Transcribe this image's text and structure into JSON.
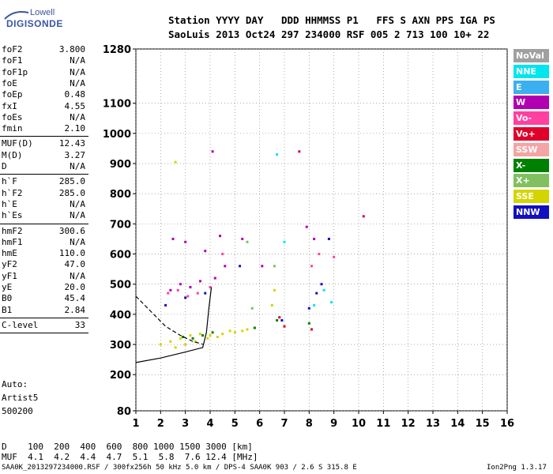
{
  "logo": {
    "line1": "Lowell",
    "line2": "DIGISONDE"
  },
  "header": {
    "row1": "Station YYYY DAY   DDD HHMMSS P1   FFS S AXN PPS IGA PS",
    "row2": "SaoLuis 2013 Oct24 297 234000 RSF 005 2 713 100 10+ 22"
  },
  "params_group1": [
    {
      "name": "foF2",
      "value": "3.800"
    },
    {
      "name": "foF1",
      "value": "N/A"
    },
    {
      "name": "foF1p",
      "value": "N/A"
    },
    {
      "name": "foE",
      "value": "N/A"
    },
    {
      "name": "foEp",
      "value": "0.48"
    },
    {
      "name": "fxI",
      "value": "4.55"
    },
    {
      "name": "foEs",
      "value": "N/A"
    },
    {
      "name": "fmin",
      "value": "2.10"
    }
  ],
  "params_group2": [
    {
      "name": "MUF(D)",
      "value": "12.43"
    },
    {
      "name": "M(D)",
      "value": "3.27"
    },
    {
      "name": "D",
      "value": "N/A"
    }
  ],
  "params_group3": [
    {
      "name": "h`F",
      "value": "285.0"
    },
    {
      "name": "h`F2",
      "value": "285.0"
    },
    {
      "name": "h`E",
      "value": "N/A"
    },
    {
      "name": "h`Es",
      "value": "N/A"
    }
  ],
  "params_group4": [
    {
      "name": "hmF2",
      "value": "300.6"
    },
    {
      "name": "hmF1",
      "value": "N/A"
    },
    {
      "name": "hmE",
      "value": "110.0"
    },
    {
      "name": "yF2",
      "value": "47.0"
    },
    {
      "name": "yF1",
      "value": "N/A"
    },
    {
      "name": "yE",
      "value": "20.0"
    },
    {
      "name": "B0",
      "value": "45.4"
    },
    {
      "name": "B1",
      "value": "2.84"
    }
  ],
  "params_group5": [
    {
      "name": "C-level",
      "value": "33"
    }
  ],
  "autoscaling": {
    "line1": "Auto:",
    "line2": "Artist5",
    "line3": "500200"
  },
  "legend": [
    {
      "label": "NoVal",
      "color": "#a0a0a0"
    },
    {
      "label": "NNE",
      "color": "#00e5ee"
    },
    {
      "label": "E",
      "color": "#3bb0f0"
    },
    {
      "label": "W",
      "color": "#b000b0"
    },
    {
      "label": "Vo-",
      "color": "#ff40a0"
    },
    {
      "label": "Vo+",
      "color": "#e0002a"
    },
    {
      "label": "SSW",
      "color": "#f4a4a4"
    },
    {
      "label": "X-",
      "color": "#008000"
    },
    {
      "label": "X+",
      "color": "#80c060"
    },
    {
      "label": "SSE",
      "color": "#d4d400"
    },
    {
      "label": "NNW",
      "color": "#1010c0"
    }
  ],
  "muf_table": {
    "d_row": "D    100  200  400  600  800 1000 1500 3000 [km]",
    "muf_row": "MUF  4.1  4.2  4.4  4.7  5.1  5.8  7.6 12.4 [MHz]"
  },
  "footer": {
    "left": "SAA0K_2013297234000.RSF / 300fx256h 50 kHz 5.0 km / DPS-4 SAA0K 903 / 2.6 S 315.8 E",
    "right": "Ion2Png 1.3.17"
  },
  "chart_data": {
    "type": "scatter",
    "title": "",
    "xlabel": "",
    "ylabel": "",
    "x_axis": {
      "range": [
        1,
        16
      ],
      "ticks": [
        1,
        2,
        3,
        4,
        5,
        6,
        7,
        8,
        9,
        10,
        11,
        12,
        13,
        14,
        15,
        16
      ]
    },
    "y_axis": {
      "range": [
        80,
        1280
      ],
      "ticks": [
        80,
        200,
        300,
        400,
        500,
        600,
        700,
        800,
        900,
        1000,
        1100,
        1280
      ]
    },
    "grid": true,
    "legend_position": "right",
    "series": [
      {
        "mode": "SSE",
        "points": [
          [
            2.0,
            300
          ],
          [
            2.4,
            310
          ],
          [
            2.8,
            320
          ],
          [
            3.2,
            330
          ],
          [
            3.6,
            335
          ],
          [
            4.0,
            330
          ],
          [
            4.5,
            335
          ],
          [
            5.0,
            340
          ],
          [
            5.5,
            350
          ],
          [
            2.6,
            290
          ],
          [
            3.0,
            300
          ],
          [
            3.4,
            310
          ],
          [
            3.9,
            320
          ],
          [
            4.3,
            325
          ],
          [
            4.8,
            345
          ],
          [
            5.3,
            345
          ],
          [
            6.5,
            430
          ],
          [
            6.6,
            480
          ],
          [
            2.6,
            905
          ]
        ]
      },
      {
        "mode": "X-",
        "points": [
          [
            2.9,
            325
          ],
          [
            3.3,
            320
          ],
          [
            3.7,
            330
          ],
          [
            4.1,
            340
          ],
          [
            5.8,
            355
          ],
          [
            6.7,
            380
          ],
          [
            8.0,
            370
          ]
        ]
      },
      {
        "mode": "W",
        "points": [
          [
            2.4,
            480
          ],
          [
            2.8,
            500
          ],
          [
            3.2,
            490
          ],
          [
            3.6,
            510
          ],
          [
            4.2,
            520
          ],
          [
            4.6,
            560
          ],
          [
            2.5,
            650
          ],
          [
            3.0,
            640
          ],
          [
            3.8,
            610
          ],
          [
            4.4,
            660
          ],
          [
            5.3,
            650
          ],
          [
            6.1,
            560
          ],
          [
            4.1,
            940
          ],
          [
            7.9,
            690
          ],
          [
            8.2,
            650
          ]
        ]
      },
      {
        "mode": "Vo-",
        "points": [
          [
            2.3,
            470
          ],
          [
            2.7,
            480
          ],
          [
            3.1,
            460
          ],
          [
            3.5,
            470
          ],
          [
            4.0,
            490
          ],
          [
            4.5,
            600
          ],
          [
            8.1,
            560
          ],
          [
            8.4,
            600
          ],
          [
            9.0,
            590
          ]
        ]
      },
      {
        "mode": "NNW",
        "points": [
          [
            2.2,
            430
          ],
          [
            3.0,
            455
          ],
          [
            3.8,
            470
          ],
          [
            5.2,
            560
          ],
          [
            8.0,
            420
          ],
          [
            8.3,
            470
          ],
          [
            8.5,
            500
          ],
          [
            6.9,
            380
          ],
          [
            8.8,
            650
          ]
        ]
      },
      {
        "mode": "NNE",
        "points": [
          [
            8.2,
            430
          ],
          [
            8.6,
            480
          ],
          [
            8.9,
            440
          ],
          [
            7.0,
            640
          ],
          [
            6.7,
            930
          ]
        ]
      },
      {
        "mode": "Vo+",
        "points": [
          [
            6.8,
            390
          ],
          [
            7.0,
            360
          ],
          [
            8.1,
            350
          ],
          [
            10.2,
            725
          ],
          [
            7.6,
            940
          ]
        ]
      },
      {
        "mode": "X+",
        "points": [
          [
            5.7,
            420
          ],
          [
            6.6,
            560
          ],
          [
            5.5,
            640
          ]
        ]
      }
    ],
    "traces": [
      {
        "name": "virtual height trace",
        "points": [
          [
            1.0,
            240
          ],
          [
            2.0,
            255
          ],
          [
            3.0,
            275
          ],
          [
            3.7,
            290
          ],
          [
            3.85,
            340
          ],
          [
            3.95,
            420
          ],
          [
            4.05,
            490
          ]
        ]
      },
      {
        "name": "profile dashed",
        "points": [
          [
            1.0,
            460
          ],
          [
            1.6,
            410
          ],
          [
            2.2,
            360
          ],
          [
            2.8,
            330
          ],
          [
            3.3,
            310
          ],
          [
            3.7,
            301
          ]
        ]
      }
    ]
  }
}
